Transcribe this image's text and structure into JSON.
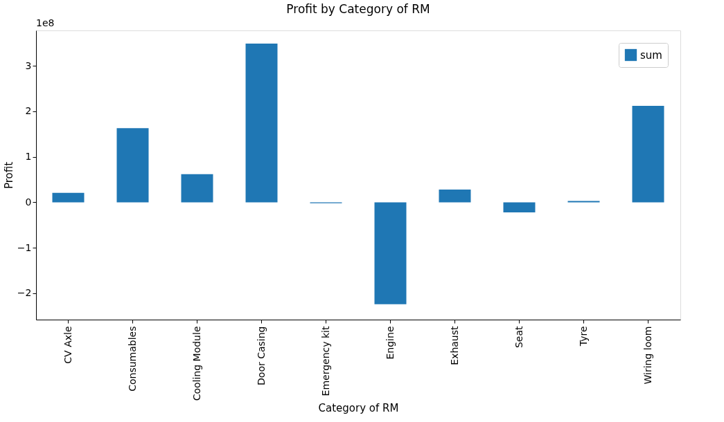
{
  "chart_data": {
    "type": "bar",
    "title": "Profit by Category of RM",
    "xlabel": "Category of RM",
    "ylabel": "Profit",
    "annotations": [
      "1e8"
    ],
    "categories": [
      "CV Axle",
      "Consumables",
      "Cooling Module",
      "Door Casing",
      "Emergency kit",
      "Engine",
      "Exhaust",
      "Seat",
      "Tyre",
      "Wiring loom"
    ],
    "series": [
      {
        "name": "sum",
        "color": "#1f77b4",
        "values": [
          0.21,
          1.63,
          0.62,
          3.49,
          -0.02,
          -2.24,
          0.28,
          -0.22,
          0.03,
          2.12
        ]
      }
    ],
    "ylim": [
      -2.58,
      3.78
    ],
    "yticks": [
      -2,
      -1,
      0,
      1,
      2,
      3
    ],
    "grid": false,
    "legend": "top right"
  }
}
